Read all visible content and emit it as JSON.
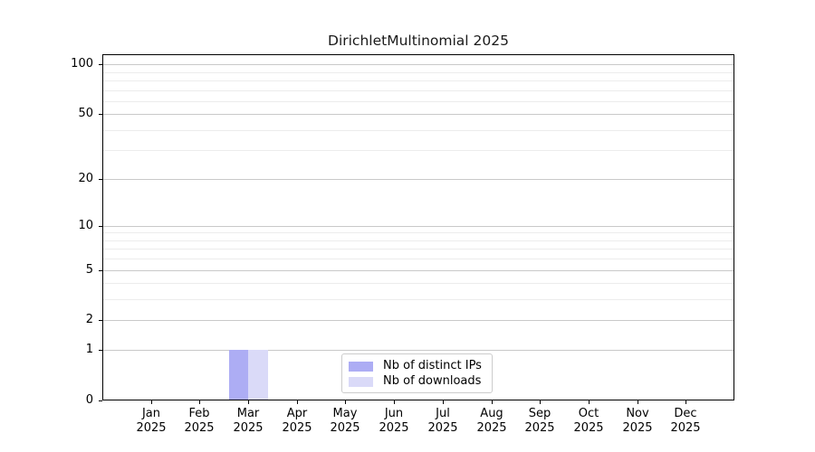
{
  "figure": {
    "background": "#ffffff"
  },
  "legend": {
    "items": [
      {
        "label": "Nb of distinct IPs",
        "color": "#adadf4"
      },
      {
        "label": "Nb of downloads",
        "color": "#dadaf8"
      }
    ]
  },
  "chart_data": {
    "type": "bar",
    "title": "DirichletMultinomial 2025",
    "categories": [
      "Jan 2025",
      "Feb 2025",
      "Mar 2025",
      "Apr 2025",
      "May 2025",
      "Jun 2025",
      "Jul 2025",
      "Aug 2025",
      "Sep 2025",
      "Oct 2025",
      "Nov 2025",
      "Dec 2025"
    ],
    "series": [
      {
        "name": "Nb of distinct IPs",
        "color": "#adadf4",
        "values": [
          0,
          0,
          1,
          0,
          0,
          0,
          0,
          0,
          0,
          0,
          0,
          0
        ]
      },
      {
        "name": "Nb of downloads",
        "color": "#dadaf8",
        "values": [
          0,
          0,
          1,
          0,
          0,
          0,
          0,
          0,
          0,
          0,
          0,
          0
        ]
      }
    ],
    "xlabel": "",
    "ylabel": "",
    "yscale": "log1p",
    "ylim": [
      0,
      115
    ],
    "yticks_major": [
      0,
      1,
      2,
      5,
      10,
      20,
      50,
      100
    ],
    "yticks_minor": [
      3,
      4,
      6,
      7,
      8,
      9,
      30,
      40,
      60,
      70,
      80,
      90
    ],
    "grid": "horizontal",
    "grid_major_color": "#c9c9c9",
    "grid_minor_color": "#ececec",
    "axis_color": "#000000",
    "legend_position": "lower center inside"
  }
}
